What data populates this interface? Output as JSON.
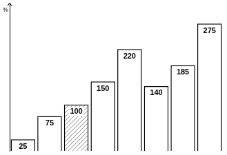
{
  "chart_data": {
    "type": "bar",
    "ylabel": "%",
    "categories": [
      null,
      null,
      null,
      null,
      null,
      null,
      null,
      null
    ],
    "values": [
      25,
      75,
      100,
      150,
      220,
      140,
      185,
      275
    ],
    "colors": [
      "#ffffff",
      "#ffffff",
      "#888888",
      "#ffffff",
      "#ffffff",
      "#ffffff",
      "#ffffff",
      "#ffffff"
    ],
    "ylim": [
      0,
      320
    ],
    "grid": false,
    "data_labels": true,
    "tick_labels": false
  }
}
